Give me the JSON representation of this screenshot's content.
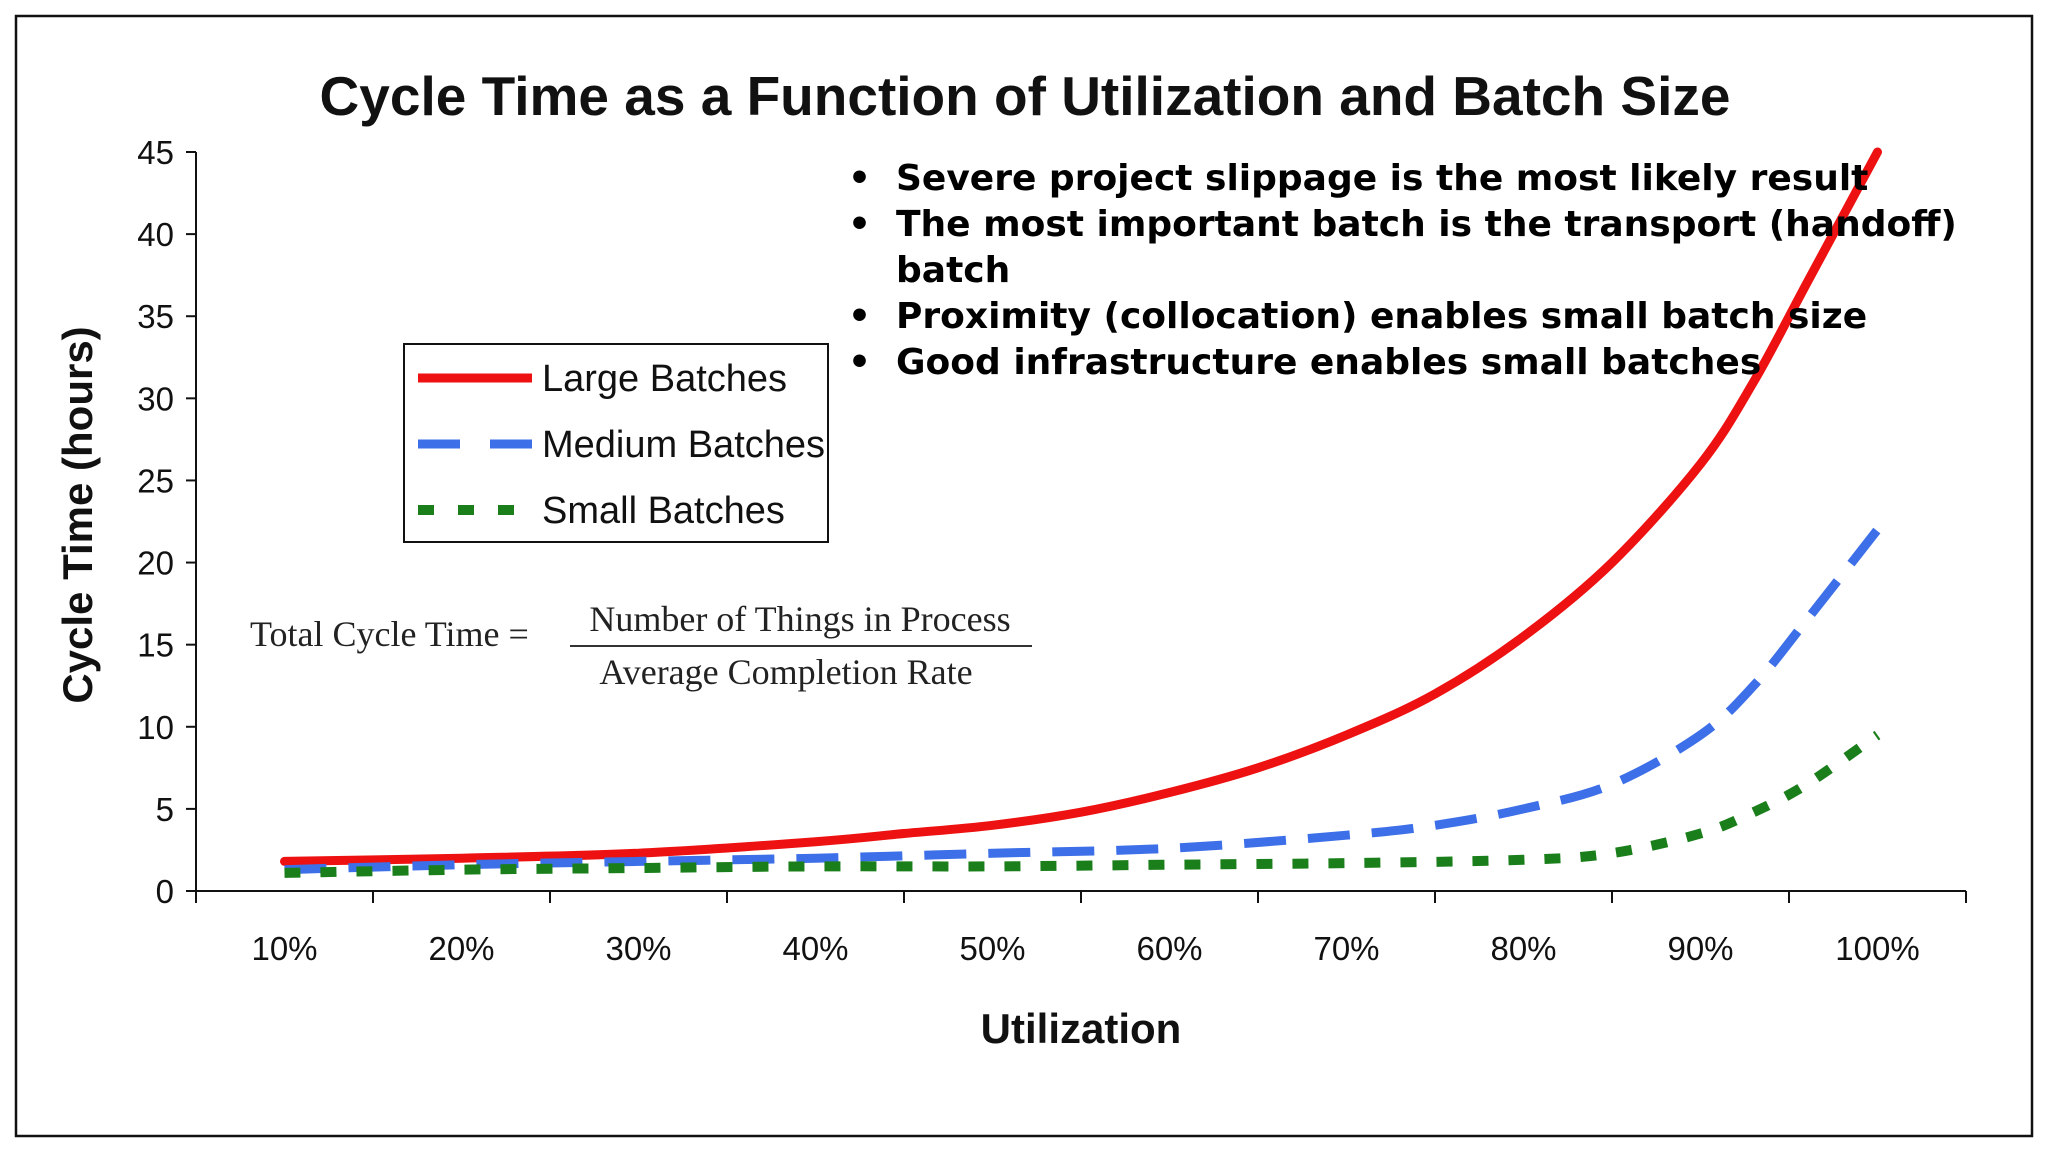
{
  "chart_data": {
    "type": "line",
    "title": "Cycle Time as a Function of Utilization and Batch Size",
    "xlabel": "Utilization",
    "ylabel": "Cycle Time (hours)",
    "categories": [
      "10%",
      "20%",
      "30%",
      "40%",
      "50%",
      "60%",
      "70%",
      "80%",
      "90%",
      "100%"
    ],
    "ylim": [
      0,
      45
    ],
    "yticks": [
      0,
      5,
      10,
      15,
      20,
      25,
      30,
      35,
      40,
      45
    ],
    "grid": false,
    "legend_position": "left",
    "series": [
      {
        "name": "Large Batches",
        "color": "#ee1111",
        "style": "solid",
        "x": [
          10,
          20,
          30,
          40,
          45,
          50,
          55,
          60,
          65,
          70,
          75,
          80,
          85,
          90,
          93,
          96,
          100
        ],
        "values": [
          1.8,
          2.0,
          2.3,
          3.0,
          3.5,
          4.0,
          4.8,
          6.0,
          7.5,
          9.5,
          12.0,
          15.5,
          20.0,
          26.0,
          31.0,
          37.0,
          45.0
        ]
      },
      {
        "name": "Medium Batches",
        "color": "#3d6fe8",
        "style": "dashed",
        "x": [
          10,
          20,
          30,
          40,
          50,
          60,
          70,
          75,
          80,
          85,
          90,
          93,
          96,
          100
        ],
        "values": [
          1.3,
          1.6,
          1.8,
          2.0,
          2.3,
          2.6,
          3.4,
          4.0,
          5.0,
          6.5,
          9.5,
          12.5,
          16.5,
          22.0
        ]
      },
      {
        "name": "Small Batches",
        "color": "#1a7f1a",
        "style": "dotted",
        "x": [
          10,
          20,
          30,
          40,
          50,
          60,
          70,
          80,
          85,
          90,
          93,
          96,
          100
        ],
        "values": [
          1.1,
          1.3,
          1.4,
          1.5,
          1.5,
          1.6,
          1.7,
          1.9,
          2.3,
          3.5,
          4.8,
          6.5,
          9.5
        ]
      }
    ]
  },
  "bullets": [
    "Severe project slippage is the most likely result",
    "The most important batch is the transport (handoff)",
    "batch",
    "Proximity (collocation) enables small batch size",
    "Good infrastructure enables small batches"
  ],
  "bullet_char": "•",
  "formula": {
    "lhs": "Total Cycle Time =",
    "numerator": "Number of Things in Process",
    "denominator": "Average Completion Rate"
  }
}
